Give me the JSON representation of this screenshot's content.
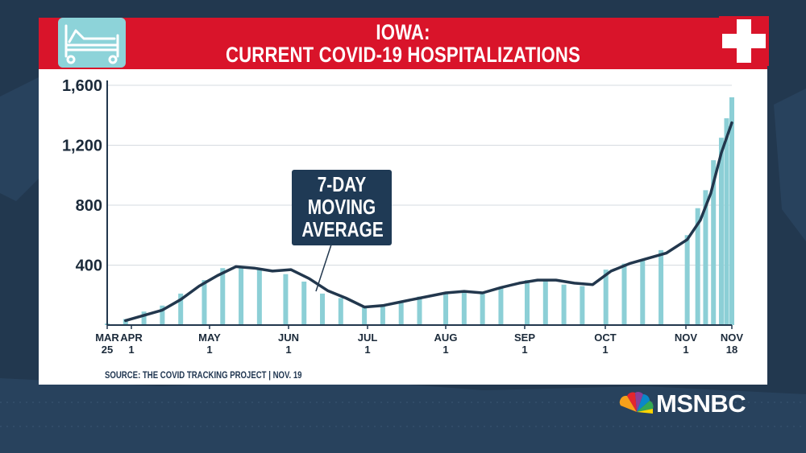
{
  "header": {
    "title_line1": "IOWA:",
    "title_line2": "CURRENT COVID-19 HOSPITALIZATIONS"
  },
  "callout": {
    "line1": "7-DAY",
    "line2": "MOVING",
    "line3": "AVERAGE"
  },
  "source": "SOURCE: THE COVID TRACKING PROJECT | NOV. 19",
  "brand": "MSNBC",
  "colors": {
    "banner": "#d9142a",
    "bars": "#8ccfd6",
    "line": "#22374d",
    "background": "#22384f"
  },
  "chart_data": {
    "type": "bar",
    "title": "IOWA: CURRENT COVID-19 HOSPITALIZATIONS",
    "xlabel": "",
    "ylabel": "",
    "ylim": [
      0,
      1600
    ],
    "yticks": [
      400,
      800,
      1200,
      1600
    ],
    "ytick_labels": [
      "400",
      "800",
      "1,200",
      "1,600"
    ],
    "xtick_labels": [
      {
        "top": "MAR",
        "bottom": "25"
      },
      {
        "top": "APR",
        "bottom": "1"
      },
      {
        "top": "MAY",
        "bottom": "1"
      },
      {
        "top": "JUN",
        "bottom": "1"
      },
      {
        "top": "JUL",
        "bottom": "1"
      },
      {
        "top": "AUG",
        "bottom": "1"
      },
      {
        "top": "SEP",
        "bottom": "1"
      },
      {
        "top": "OCT",
        "bottom": "1"
      },
      {
        "top": "NOV",
        "bottom": "1"
      },
      {
        "top": "NOV",
        "bottom": "18"
      }
    ],
    "grid": true,
    "series": [
      {
        "name": "Current hospitalizations",
        "type": "bar",
        "points": [
          [
            "2020-03-25",
            10
          ],
          [
            "2020-04-01",
            40
          ],
          [
            "2020-04-08",
            90
          ],
          [
            "2020-04-15",
            130
          ],
          [
            "2020-04-22",
            210
          ],
          [
            "2020-05-01",
            300
          ],
          [
            "2020-05-08",
            380
          ],
          [
            "2020-05-15",
            390
          ],
          [
            "2020-05-22",
            380
          ],
          [
            "2020-06-01",
            340
          ],
          [
            "2020-06-08",
            290
          ],
          [
            "2020-06-15",
            210
          ],
          [
            "2020-06-22",
            180
          ],
          [
            "2020-07-01",
            120
          ],
          [
            "2020-07-08",
            130
          ],
          [
            "2020-07-15",
            150
          ],
          [
            "2020-07-22",
            190
          ],
          [
            "2020-08-01",
            220
          ],
          [
            "2020-08-08",
            220
          ],
          [
            "2020-08-15",
            210
          ],
          [
            "2020-08-22",
            250
          ],
          [
            "2020-09-01",
            300
          ],
          [
            "2020-09-08",
            300
          ],
          [
            "2020-09-15",
            270
          ],
          [
            "2020-09-22",
            260
          ],
          [
            "2020-10-01",
            370
          ],
          [
            "2020-10-08",
            410
          ],
          [
            "2020-10-15",
            440
          ],
          [
            "2020-10-22",
            500
          ],
          [
            "2020-11-01",
            600
          ],
          [
            "2020-11-05",
            780
          ],
          [
            "2020-11-08",
            900
          ],
          [
            "2020-11-11",
            1100
          ],
          [
            "2020-11-14",
            1250
          ],
          [
            "2020-11-16",
            1380
          ],
          [
            "2020-11-18",
            1520
          ]
        ]
      },
      {
        "name": "7-day moving average",
        "type": "line",
        "points": [
          [
            "2020-04-01",
            30
          ],
          [
            "2020-04-15",
            100
          ],
          [
            "2020-04-22",
            170
          ],
          [
            "2020-04-29",
            260
          ],
          [
            "2020-05-06",
            330
          ],
          [
            "2020-05-13",
            390
          ],
          [
            "2020-05-20",
            380
          ],
          [
            "2020-05-27",
            360
          ],
          [
            "2020-06-03",
            370
          ],
          [
            "2020-06-10",
            310
          ],
          [
            "2020-06-17",
            230
          ],
          [
            "2020-06-24",
            180
          ],
          [
            "2020-07-01",
            120
          ],
          [
            "2020-07-08",
            130
          ],
          [
            "2020-07-15",
            155
          ],
          [
            "2020-07-22",
            180
          ],
          [
            "2020-08-01",
            215
          ],
          [
            "2020-08-08",
            225
          ],
          [
            "2020-08-15",
            215
          ],
          [
            "2020-08-22",
            250
          ],
          [
            "2020-08-29",
            280
          ],
          [
            "2020-09-05",
            300
          ],
          [
            "2020-09-12",
            300
          ],
          [
            "2020-09-19",
            280
          ],
          [
            "2020-09-26",
            270
          ],
          [
            "2020-10-03",
            360
          ],
          [
            "2020-10-10",
            410
          ],
          [
            "2020-10-17",
            445
          ],
          [
            "2020-10-24",
            480
          ],
          [
            "2020-11-01",
            570
          ],
          [
            "2020-11-06",
            700
          ],
          [
            "2020-11-10",
            880
          ],
          [
            "2020-11-14",
            1150
          ],
          [
            "2020-11-18",
            1350
          ]
        ]
      }
    ]
  }
}
